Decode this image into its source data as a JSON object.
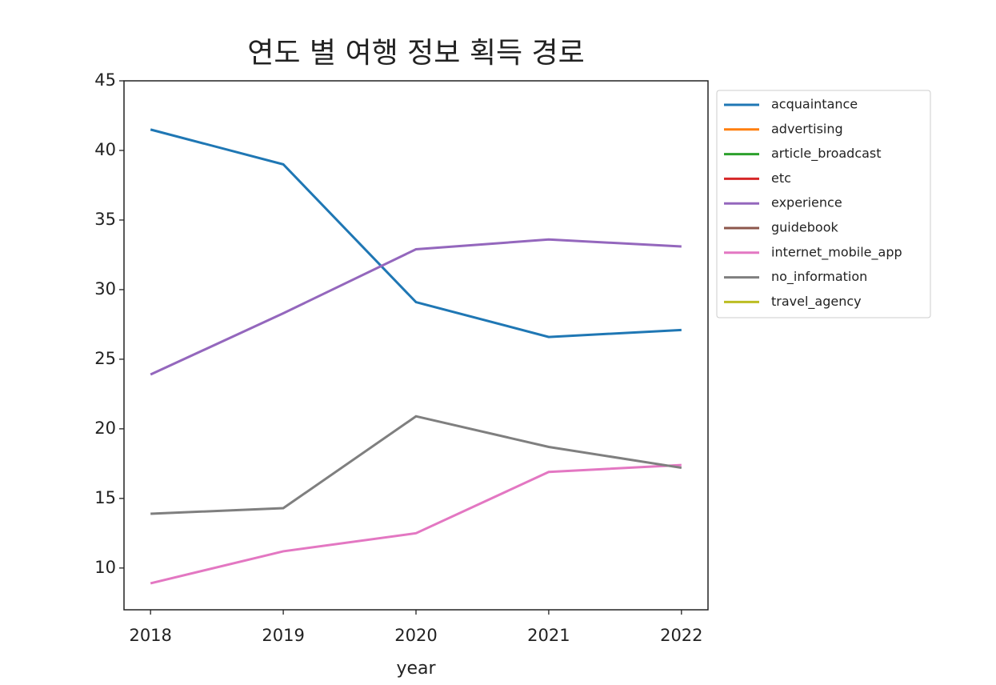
{
  "chart_data": {
    "type": "line",
    "title": "연도 별 여행 정보 획득 경로",
    "x_label": "year",
    "x": [
      2018,
      2019,
      2020,
      2021,
      2022
    ],
    "xlim": [
      2017.8,
      2022.2
    ],
    "xticks": [
      2018,
      2019,
      2020,
      2021,
      2022
    ],
    "ylim": [
      7,
      45
    ],
    "yticks": [
      10,
      15,
      20,
      25,
      30,
      35,
      40,
      45
    ],
    "grid": false,
    "legend": "outside-upper-right",
    "series": [
      {
        "name": "acquaintance",
        "color": "#1f77b4",
        "values": [
          41.5,
          39.0,
          29.1,
          26.6,
          27.1
        ]
      },
      {
        "name": "advertising",
        "color": "#ff7f0e",
        "values": [
          null,
          null,
          null,
          null,
          null
        ]
      },
      {
        "name": "article_broadcast",
        "color": "#2ca02c",
        "values": [
          null,
          null,
          null,
          null,
          null
        ]
      },
      {
        "name": "etc",
        "color": "#d62728",
        "values": [
          null,
          null,
          null,
          null,
          null
        ]
      },
      {
        "name": "experience",
        "color": "#9467bd",
        "values": [
          23.9,
          28.3,
          32.9,
          33.6,
          33.1
        ]
      },
      {
        "name": "guidebook",
        "color": "#8c564b",
        "values": [
          null,
          null,
          null,
          null,
          null
        ]
      },
      {
        "name": "internet_mobile_app",
        "color": "#e377c2",
        "values": [
          8.9,
          11.2,
          12.5,
          16.9,
          17.4
        ]
      },
      {
        "name": "no_information",
        "color": "#7f7f7f",
        "values": [
          13.9,
          14.3,
          20.9,
          18.7,
          17.2
        ]
      },
      {
        "name": "travel_agency",
        "color": "#bcbd22",
        "values": [
          null,
          null,
          null,
          null,
          null
        ]
      }
    ]
  }
}
